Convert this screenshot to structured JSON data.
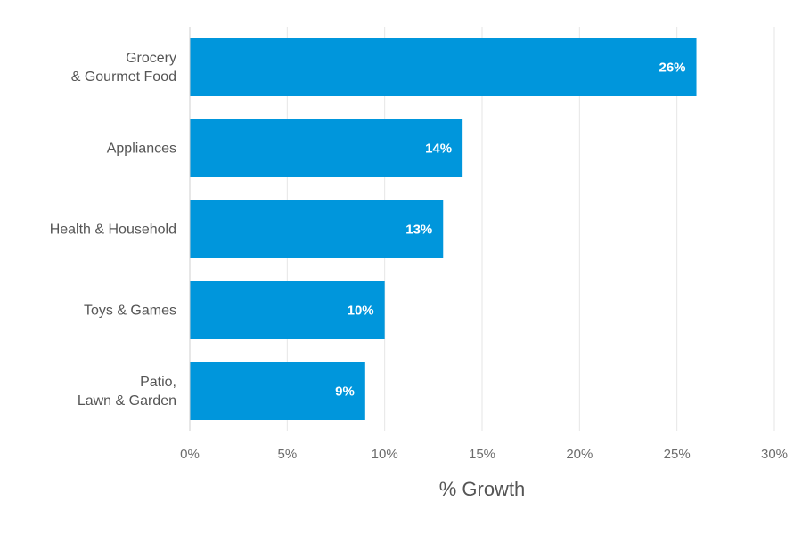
{
  "chart_data": {
    "type": "bar",
    "orientation": "horizontal",
    "categories": [
      [
        "Grocery",
        "& Gourmet Food"
      ],
      [
        "Appliances"
      ],
      [
        "Health & Household"
      ],
      [
        "Toys & Games"
      ],
      [
        "Patio,",
        "Lawn & Garden"
      ]
    ],
    "values": [
      26,
      14,
      13,
      10,
      9
    ],
    "data_labels": [
      "26%",
      "14%",
      "13%",
      "10%",
      "9%"
    ],
    "xlabel": "% Growth",
    "xlim": [
      0,
      30
    ],
    "xticks": [
      0,
      5,
      10,
      15,
      20,
      25,
      30
    ],
    "xtick_labels": [
      "0%",
      "5%",
      "10%",
      "15%",
      "20%",
      "25%",
      "30%"
    ],
    "grid": "vertical",
    "bar_color": "#0096dc",
    "label_color": "#ffffff"
  }
}
